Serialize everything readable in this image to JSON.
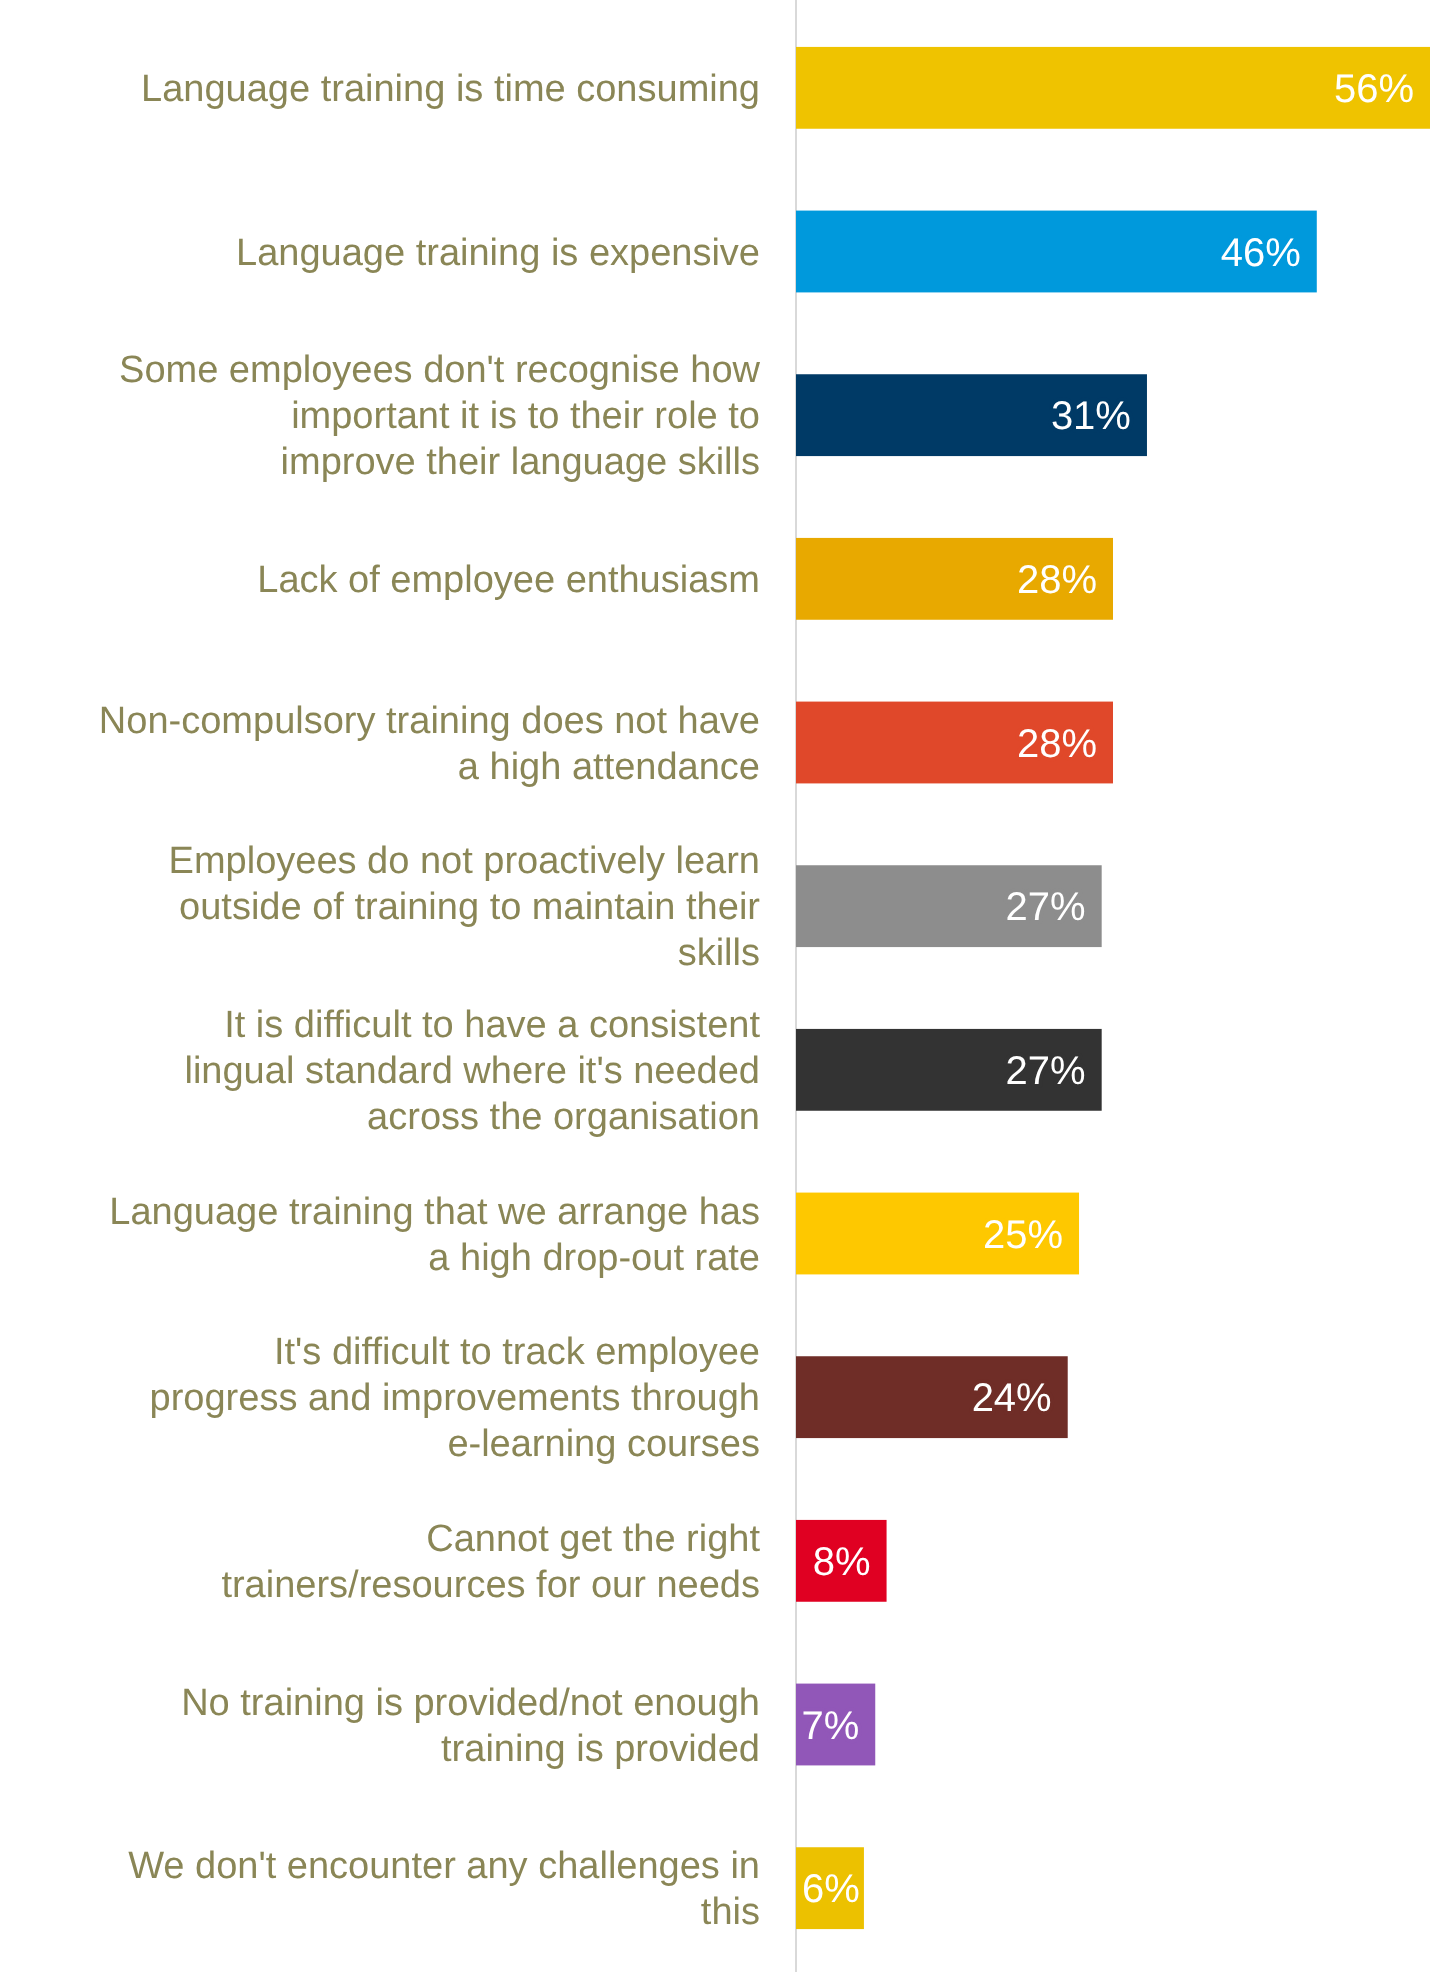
{
  "chart_data": {
    "type": "bar",
    "orientation": "horizontal",
    "xlim": [
      0,
      56
    ],
    "value_labels": [
      "56%",
      "46%",
      "31%",
      "28%",
      "28%",
      "27%",
      "27%",
      "25%",
      "24%",
      "8%",
      "7%",
      "6%"
    ],
    "categories": [
      "Language training is time consuming",
      "Language training is expensive",
      "Some employees don't recognise how important it is to their role to improve their language skills",
      "Lack of employee enthusiasm",
      "Non-compulsory training does not have a high attendance",
      "Employees do not proactively learn outside of training to maintain their skills",
      "It is difficult to have a consistent lingual standard where it's needed across the organisation",
      "Language training that we arrange has a high drop-out rate",
      "It's difficult to track employee progress and improvements through e-learning courses",
      "Cannot get the right trainers/resources for our needs",
      "No training is provided/not enough training is provided",
      "We don't encounter any challenges in this"
    ],
    "values": [
      56,
      46,
      31,
      28,
      28,
      27,
      27,
      25,
      24,
      8,
      7,
      6
    ],
    "colors": [
      "#efc300",
      "#0099dc",
      "#003a66",
      "#e8a900",
      "#e0482a",
      "#8d8d8d",
      "#333333",
      "#fec800",
      "#6f2d27",
      "#e00022",
      "#9157b8",
      "#ecc100"
    ]
  }
}
